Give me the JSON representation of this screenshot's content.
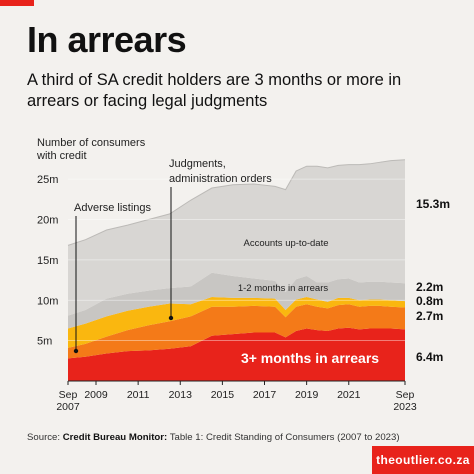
{
  "header": {
    "title": "In arrears",
    "subtitle": "A third of SA credit holders are 3 months or more in arrears or facing legal judgments"
  },
  "source": {
    "prefix": "Source: ",
    "name": "Credit Bureau Monitor:",
    "rest": " Table 1: Credit Standing of Consumers (2007 to 2023)"
  },
  "brand": "theoutlier.co.za",
  "colors": {
    "background": "#f3f1ee",
    "accounts_up_to_date": "#d8d6d3",
    "one_two_months": "#c8c6c3",
    "adverse": "#fab70f",
    "judgments": "#f47a18",
    "three_plus": "#e8231b",
    "accent": "#e8231b"
  },
  "chart_data": {
    "type": "area",
    "stacked": true,
    "ylabel": "Number of consumers with credit",
    "ylim": [
      0,
      27
    ],
    "y_ticks": [
      5,
      10,
      15,
      20,
      25
    ],
    "y_tick_labels": [
      "5m",
      "10m",
      "15m",
      "20m",
      "25m"
    ],
    "xlim": [
      2007.67,
      2023.67
    ],
    "x_ticks": [
      2007.67,
      2009,
      2011,
      2013,
      2015,
      2017,
      2019,
      2021,
      2023.67
    ],
    "x_tick_labels": [
      {
        "line1": "Sep",
        "line2": "2007"
      },
      {
        "line1": "2009",
        "line2": ""
      },
      {
        "line1": "2011",
        "line2": ""
      },
      {
        "line1": "2013",
        "line2": ""
      },
      {
        "line1": "2015",
        "line2": ""
      },
      {
        "line1": "2017",
        "line2": ""
      },
      {
        "line1": "2019",
        "line2": ""
      },
      {
        "line1": "2021",
        "line2": ""
      },
      {
        "line1": "Sep",
        "line2": "2023"
      }
    ],
    "grid": true,
    "x": [
      2007.67,
      2008.5,
      2009.5,
      2010.5,
      2011.5,
      2012.5,
      2013.5,
      2014.5,
      2015.5,
      2016.5,
      2017.5,
      2018,
      2018.5,
      2019,
      2019.5,
      2020,
      2020.5,
      2021,
      2021.5,
      2022,
      2022.5,
      2023,
      2023.67
    ],
    "series": [
      {
        "name": "3+ months in arrears",
        "color_key": "three_plus",
        "values": [
          2.8,
          3.0,
          3.4,
          3.7,
          3.8,
          4.0,
          4.3,
          5.6,
          5.8,
          6.0,
          6.0,
          5.4,
          6.2,
          6.5,
          6.3,
          6.2,
          6.5,
          6.6,
          6.4,
          6.5,
          6.5,
          6.5,
          6.4
        ]
      },
      {
        "name": "Judgments, administration orders",
        "color_key": "judgments",
        "values": [
          1.3,
          1.6,
          2.1,
          2.6,
          3.1,
          3.4,
          3.7,
          3.6,
          3.4,
          3.3,
          3.2,
          2.5,
          3.0,
          3.0,
          2.9,
          2.8,
          2.9,
          2.9,
          2.8,
          2.8,
          2.8,
          2.7,
          2.7
        ]
      },
      {
        "name": "Adverse listings",
        "color_key": "adverse",
        "values": [
          2.4,
          2.5,
          2.5,
          2.4,
          2.3,
          2.2,
          1.5,
          1.2,
          1.1,
          1.0,
          1.0,
          0.9,
          0.9,
          0.9,
          0.9,
          0.8,
          0.9,
          0.8,
          0.8,
          0.8,
          0.8,
          0.8,
          0.8
        ]
      },
      {
        "name": "1-2 months in arrears",
        "color_key": "one_two_months",
        "values": [
          1.6,
          1.7,
          2.2,
          2.1,
          2.0,
          1.9,
          2.2,
          3.0,
          2.7,
          2.4,
          2.2,
          2.2,
          2.5,
          2.6,
          2.1,
          2.4,
          2.3,
          2.4,
          2.2,
          2.2,
          2.2,
          2.2,
          2.2
        ]
      },
      {
        "name": "Accounts  up-to-date",
        "color_key": "accounts_up_to_date",
        "values": [
          8.7,
          8.7,
          8.5,
          8.5,
          8.8,
          9.2,
          10.7,
          10.5,
          11.3,
          11.7,
          11.7,
          12.7,
          13.4,
          13.6,
          14.4,
          14.2,
          14.1,
          14.1,
          14.6,
          14.6,
          14.8,
          15.1,
          15.3
        ]
      }
    ],
    "annotations": {
      "adverse": "Adverse listings",
      "judgments_line1": "Judgments,",
      "judgments_line2": "administration orders",
      "accounts": "Accounts  up-to-date",
      "one_two": "1-2 months in arrears",
      "three_plus": "3+ months in arrears"
    },
    "end_labels": [
      {
        "text": "15.3m",
        "value": 15.3,
        "series": "Accounts  up-to-date"
      },
      {
        "text": "2.2m",
        "value": 2.2,
        "series": "1-2 months in arrears"
      },
      {
        "text": "0.8m",
        "value": 0.8,
        "series": "Adverse listings"
      },
      {
        "text": "2.7m",
        "value": 2.7,
        "series": "Judgments, administration orders"
      },
      {
        "text": "6.4m",
        "value": 6.4,
        "series": "3+ months in arrears"
      }
    ]
  }
}
